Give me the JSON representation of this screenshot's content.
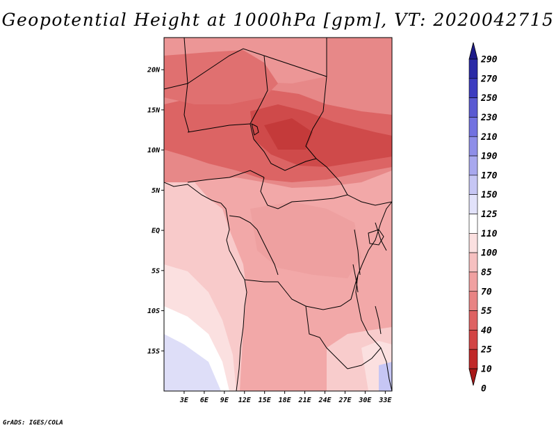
{
  "title": "Geopotential Height at 1000hPa [gpm], VT: 2020042715",
  "credit": "GrADS: IGES/COLA",
  "map": {
    "lon_range": [
      0,
      34
    ],
    "lat_range": [
      -20,
      24
    ],
    "lat_ticks": [
      {
        "label": "20N",
        "value": 20
      },
      {
        "label": "15N",
        "value": 15
      },
      {
        "label": "10N",
        "value": 10
      },
      {
        "label": "5N",
        "value": 5
      },
      {
        "label": "EQ",
        "value": 0
      },
      {
        "label": "5S",
        "value": -5
      },
      {
        "label": "10S",
        "value": -10
      },
      {
        "label": "15S",
        "value": -15
      }
    ],
    "lon_ticks": [
      {
        "label": "3E",
        "value": 3
      },
      {
        "label": "6E",
        "value": 6
      },
      {
        "label": "9E",
        "value": 9
      },
      {
        "label": "12E",
        "value": 12
      },
      {
        "label": "15E",
        "value": 15
      },
      {
        "label": "18E",
        "value": 18
      },
      {
        "label": "21E",
        "value": 21
      },
      {
        "label": "24E",
        "value": 24
      },
      {
        "label": "27E",
        "value": 27
      },
      {
        "label": "30E",
        "value": 30
      },
      {
        "label": "33E",
        "value": 33
      }
    ]
  },
  "colorbar": {
    "levels": [
      "290",
      "270",
      "250",
      "230",
      "210",
      "190",
      "170",
      "150",
      "125",
      "110",
      "100",
      "85",
      "70",
      "55",
      "40",
      "25",
      "10",
      "0"
    ],
    "colors": [
      "#1e1c8a",
      "#2a2aa6",
      "#3c3cc0",
      "#5a5ad2",
      "#7272e0",
      "#8e8ee8",
      "#a8a8ee",
      "#c6c6f4",
      "#e2e2fa",
      "#ffffff",
      "#fbe0e0",
      "#f6c0c0",
      "#f0a0a0",
      "#e88484",
      "#de6262",
      "#d24444",
      "#c02828",
      "#a81818"
    ]
  }
}
